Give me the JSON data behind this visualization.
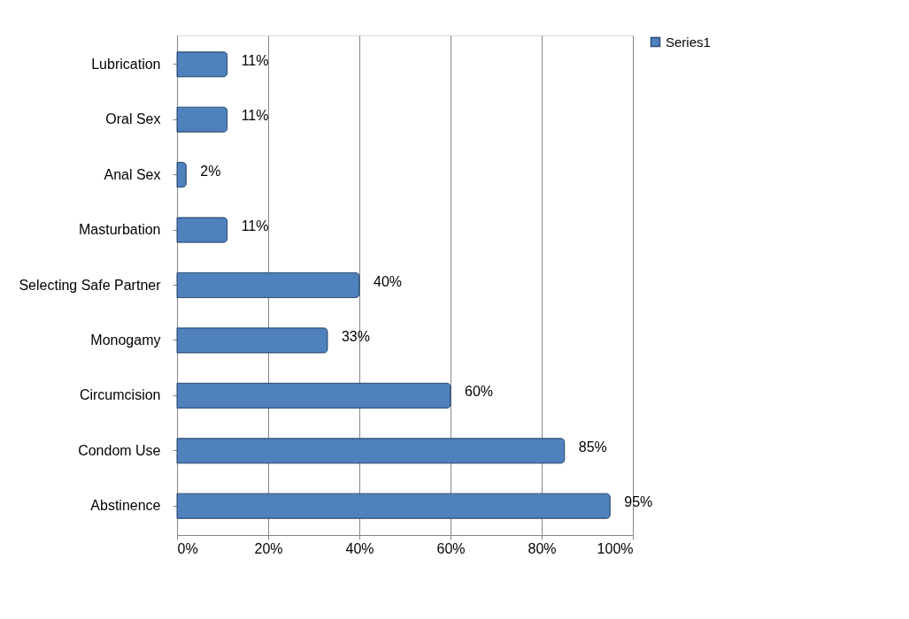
{
  "chart_data": {
    "type": "bar",
    "orientation": "horizontal",
    "categories": [
      "Lubrication",
      "Oral Sex",
      "Anal Sex",
      "Masturbation",
      "Selecting Safe Partner",
      "Monogamy",
      "Circumcision",
      "Condom Use",
      "Abstinence"
    ],
    "series": [
      {
        "name": "Series1",
        "color": "#4f81bd",
        "values": [
          11,
          11,
          2,
          11,
          40,
          33,
          60,
          85,
          95
        ],
        "value_labels": [
          "11%",
          "11%",
          "2%",
          "11%",
          "40%",
          "33%",
          "60%",
          "85%",
          "95%"
        ]
      }
    ],
    "xlim": [
      0,
      100
    ],
    "xticks": [
      {
        "value": 0,
        "label": "0%"
      },
      {
        "value": 20,
        "label": "20%"
      },
      {
        "value": 40,
        "label": "40%"
      },
      {
        "value": 60,
        "label": "60%"
      },
      {
        "value": 80,
        "label": "80%"
      },
      {
        "value": 100,
        "label": "100%"
      }
    ],
    "grid": "x",
    "legend": "right"
  }
}
